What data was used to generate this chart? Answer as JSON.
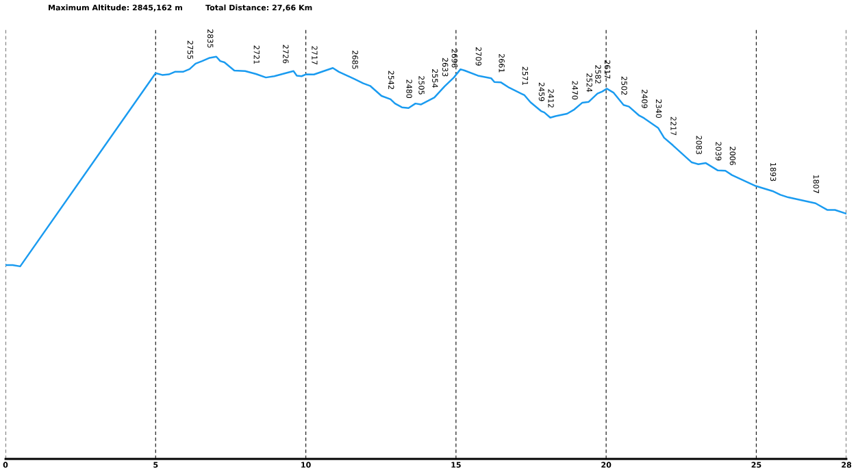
{
  "chart_data": {
    "type": "line",
    "annotations": [
      "Maximum Altitude: 2845,162 m",
      "Total Distance: 27,66 Km"
    ],
    "x": [
      0,
      0.24,
      0.49,
      5.0,
      5.22,
      5.44,
      5.64,
      5.91,
      6.13,
      6.33,
      6.55,
      6.8,
      7.02,
      7.15,
      7.29,
      7.62,
      7.98,
      8.34,
      8.67,
      8.95,
      9.31,
      9.59,
      9.7,
      9.86,
      10.0,
      10.27,
      10.65,
      10.9,
      11.1,
      11.62,
      11.91,
      12.14,
      12.52,
      12.82,
      12.97,
      13.2,
      13.42,
      13.65,
      13.83,
      14.28,
      14.62,
      14.93,
      15.15,
      15.29,
      15.73,
      16.17,
      16.28,
      16.5,
      16.77,
      17.28,
      17.48,
      17.83,
      17.94,
      18.14,
      18.32,
      18.7,
      18.94,
      19.2,
      19.42,
      19.71,
      19.87,
      20.02,
      20.25,
      20.58,
      20.76,
      21.1,
      21.26,
      21.73,
      21.93,
      22.22,
      22.85,
      23.07,
      23.32,
      23.72,
      23.97,
      24.19,
      24.98,
      25.54,
      25.8,
      26.06,
      26.97,
      27.36,
      27.62,
      28.0
    ],
    "series": [
      {
        "color": "#1a9bf0",
        "values": [
          1370,
          1370,
          1361,
          2727,
          2714,
          2718,
          2736,
          2736,
          2755,
          2794,
          2812,
          2835,
          2843,
          2812,
          2803,
          2745,
          2741,
          2721,
          2696,
          2705,
          2726,
          2741,
          2709,
          2705,
          2718,
          2717,
          2745,
          2763,
          2736,
          2685,
          2655,
          2637,
          2566,
          2542,
          2512,
          2485,
          2480,
          2512,
          2505,
          2554,
          2633,
          2696,
          2754,
          2745,
          2709,
          2691,
          2664,
          2661,
          2624,
          2571,
          2521,
          2459,
          2449,
          2412,
          2423,
          2440,
          2470,
          2517,
          2524,
          2582,
          2597,
          2617,
          2588,
          2502,
          2490,
          2427,
          2409,
          2340,
          2270,
          2217,
          2096,
          2083,
          2091,
          2039,
          2037,
          2006,
          1929,
          1893,
          1867,
          1849,
          1807,
          1760,
          1760,
          1733
        ],
        "value_labels": [
          null,
          null,
          null,
          null,
          null,
          null,
          null,
          null,
          "2755",
          null,
          null,
          "2835",
          null,
          null,
          null,
          null,
          null,
          "2721",
          null,
          null,
          "2726",
          null,
          null,
          null,
          null,
          "2717",
          null,
          null,
          null,
          "2685",
          null,
          null,
          null,
          "2542",
          null,
          null,
          "2480",
          null,
          "2505",
          "2554",
          "2633",
          "2696",
          null,
          null,
          "2709",
          null,
          null,
          "2661",
          null,
          "2571",
          null,
          "2459",
          null,
          "2412",
          null,
          null,
          "2470",
          null,
          "2524",
          "2582",
          null,
          "2617",
          null,
          "2502",
          null,
          null,
          "2409",
          "2340",
          null,
          "2217",
          null,
          "2083",
          null,
          "2039",
          null,
          "2006",
          null,
          "1893",
          null,
          null,
          "1807",
          null,
          null,
          null
        ]
      }
    ],
    "xlim": [
      0,
      28
    ],
    "xticks": [
      0,
      5,
      10,
      15,
      20,
      25,
      28
    ],
    "ylim": [
      0,
      3050
    ],
    "tick_labels": "x",
    "grid": "x",
    "line_style": "solid",
    "marker": "none"
  }
}
